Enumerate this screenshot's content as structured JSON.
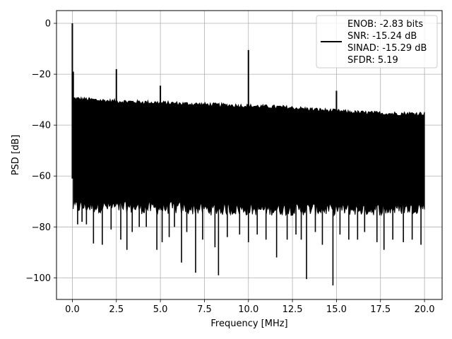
{
  "chart_data": {
    "type": "line",
    "xlabel": "Frequency [MHz]",
    "ylabel": "PSD [dB]",
    "xlim": [
      -0.9,
      21.0
    ],
    "ylim": [
      -108.5,
      5.0
    ],
    "grid": true,
    "legend_position": "top-right",
    "line_color": "#000000",
    "x_ticks": [
      {
        "value": 0.0,
        "label": "0.0"
      },
      {
        "value": 2.5,
        "label": "2.5"
      },
      {
        "value": 5.0,
        "label": "5.0"
      },
      {
        "value": 7.5,
        "label": "7.5"
      },
      {
        "value": 10.0,
        "label": "10.0"
      },
      {
        "value": 12.5,
        "label": "12.5"
      },
      {
        "value": 15.0,
        "label": "15.0"
      },
      {
        "value": 17.5,
        "label": "17.5"
      },
      {
        "value": 20.0,
        "label": "20.0"
      }
    ],
    "y_ticks": [
      {
        "value": 0,
        "label": "0"
      },
      {
        "value": -20,
        "label": "−20"
      },
      {
        "value": -40,
        "label": "−40"
      },
      {
        "value": -60,
        "label": "−60"
      },
      {
        "value": -80,
        "label": "−80"
      },
      {
        "value": -100,
        "label": "−100"
      }
    ],
    "legend": {
      "lines": [
        "ENOB: -2.83 bits",
        "SNR: -15.24 dB",
        "SINAD: -15.29 dB",
        "SFDR: 5.19"
      ]
    },
    "series": [
      {
        "noise_floor": {
          "x": [
            0.05,
            2,
            4,
            6,
            8,
            10,
            12,
            14,
            16,
            18,
            20
          ],
          "top": [
            -29.5,
            -30.5,
            -31,
            -31.5,
            -32,
            -32.5,
            -33,
            -34,
            -35,
            -35.5,
            -35.5
          ],
          "bottom": [
            -72,
            -72,
            -72.5,
            -72.5,
            -73,
            -73,
            -73,
            -73,
            -73,
            -73,
            -72
          ]
        },
        "peaks": [
          {
            "x": 0.0,
            "y": 0.0
          },
          {
            "x": 0.05,
            "y": -19.0
          },
          {
            "x": 2.5,
            "y": -18.0
          },
          {
            "x": 5.0,
            "y": -24.5
          },
          {
            "x": 10.0,
            "y": -10.5
          },
          {
            "x": 15.0,
            "y": -26.5
          }
        ],
        "dips": [
          {
            "x": 0.3,
            "y": -79
          },
          {
            "x": 0.55,
            "y": -78
          },
          {
            "x": 0.8,
            "y": -79
          },
          {
            "x": 1.2,
            "y": -86.5
          },
          {
            "x": 1.7,
            "y": -87
          },
          {
            "x": 2.2,
            "y": -81
          },
          {
            "x": 2.75,
            "y": -85
          },
          {
            "x": 3.1,
            "y": -89
          },
          {
            "x": 3.4,
            "y": -82
          },
          {
            "x": 3.8,
            "y": -80
          },
          {
            "x": 4.2,
            "y": -80
          },
          {
            "x": 4.8,
            "y": -89
          },
          {
            "x": 5.1,
            "y": -86
          },
          {
            "x": 5.5,
            "y": -84
          },
          {
            "x": 5.8,
            "y": -80
          },
          {
            "x": 6.2,
            "y": -94
          },
          {
            "x": 6.5,
            "y": -82
          },
          {
            "x": 7.0,
            "y": -98
          },
          {
            "x": 7.4,
            "y": -85
          },
          {
            "x": 8.1,
            "y": -88
          },
          {
            "x": 8.3,
            "y": -99
          },
          {
            "x": 8.8,
            "y": -84
          },
          {
            "x": 9.5,
            "y": -83
          },
          {
            "x": 10.0,
            "y": -86
          },
          {
            "x": 10.5,
            "y": -83
          },
          {
            "x": 11.0,
            "y": -85
          },
          {
            "x": 11.6,
            "y": -92
          },
          {
            "x": 12.2,
            "y": -85
          },
          {
            "x": 12.7,
            "y": -83
          },
          {
            "x": 13.0,
            "y": -85
          },
          {
            "x": 13.3,
            "y": -100.5
          },
          {
            "x": 13.8,
            "y": -82
          },
          {
            "x": 14.2,
            "y": -87
          },
          {
            "x": 14.8,
            "y": -103
          },
          {
            "x": 15.2,
            "y": -83
          },
          {
            "x": 15.7,
            "y": -85
          },
          {
            "x": 16.2,
            "y": -85
          },
          {
            "x": 16.6,
            "y": -82
          },
          {
            "x": 17.3,
            "y": -86
          },
          {
            "x": 17.7,
            "y": -89
          },
          {
            "x": 18.2,
            "y": -85
          },
          {
            "x": 18.8,
            "y": -86
          },
          {
            "x": 19.3,
            "y": -85
          },
          {
            "x": 19.8,
            "y": -87
          }
        ]
      }
    ]
  }
}
